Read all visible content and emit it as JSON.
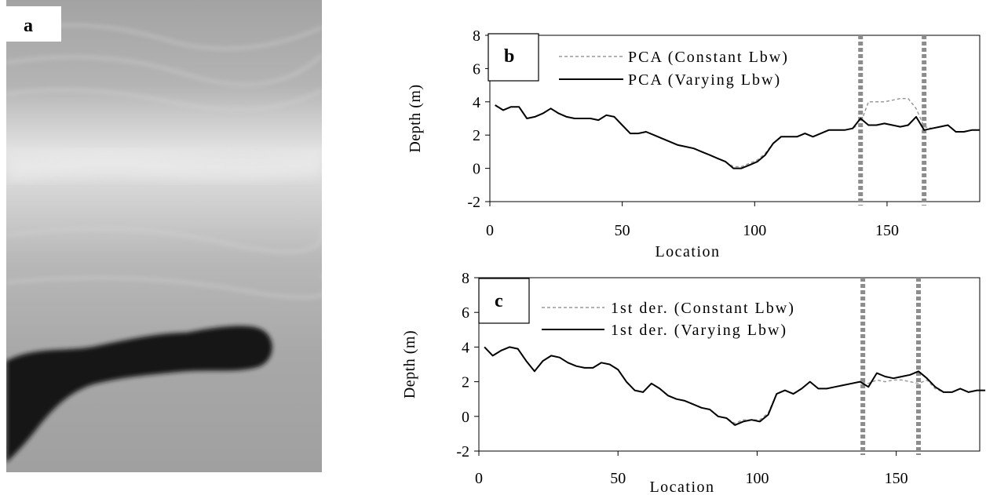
{
  "panels": {
    "a": {
      "label": "a"
    },
    "b": {
      "label": "b"
    },
    "c": {
      "label": "c"
    }
  },
  "colors": {
    "varying": "#000000",
    "constant": "#999999",
    "marker": "#8c8c8c"
  },
  "chart_data": [
    {
      "panel": "b",
      "type": "line",
      "xlabel": "Location",
      "ylabel": "Depth (m)",
      "xlim": [
        0,
        185
      ],
      "ylim": [
        -2,
        8
      ],
      "xticks": [
        0,
        50,
        100,
        150
      ],
      "yticks": [
        -2,
        0,
        2,
        4,
        6,
        8
      ],
      "legend_position": "top-center",
      "grid": false,
      "vertical_markers": [
        140,
        164
      ],
      "series": [
        {
          "name": "PCA (Constant Lbw)",
          "style": "dashed",
          "color": "#999999",
          "x": [
            2,
            5,
            8,
            11,
            14,
            17,
            20,
            23,
            26,
            29,
            32,
            35,
            38,
            41,
            44,
            47,
            50,
            53,
            56,
            59,
            62,
            65,
            68,
            71,
            74,
            77,
            80,
            83,
            86,
            89,
            92,
            95,
            98,
            101,
            104,
            107,
            110,
            113,
            116,
            119,
            122,
            125,
            128,
            131,
            134,
            137,
            140,
            143,
            146,
            149,
            152,
            155,
            158,
            161,
            164,
            167,
            170,
            173,
            176,
            179,
            182,
            185
          ],
          "values": [
            3.8,
            3.5,
            3.7,
            3.7,
            3.0,
            3.1,
            3.3,
            3.6,
            3.3,
            3.1,
            3.0,
            3.0,
            3.0,
            2.9,
            3.2,
            3.1,
            2.6,
            2.1,
            2.1,
            2.2,
            2.0,
            1.8,
            1.6,
            1.4,
            1.3,
            1.2,
            1.0,
            0.8,
            0.6,
            0.4,
            0.1,
            0.1,
            0.3,
            0.5,
            0.9,
            1.5,
            1.9,
            1.9,
            1.9,
            2.1,
            1.9,
            2.1,
            2.3,
            2.3,
            2.3,
            2.4,
            2.7,
            4.0,
            4.0,
            4.0,
            4.1,
            4.2,
            4.2,
            3.6,
            2.5,
            2.4,
            2.5,
            2.6,
            2.2,
            2.2,
            2.3,
            2.3
          ]
        },
        {
          "name": "PCA (Varying Lbw)",
          "style": "solid",
          "color": "#000000",
          "x": [
            2,
            5,
            8,
            11,
            14,
            17,
            20,
            23,
            26,
            29,
            32,
            35,
            38,
            41,
            44,
            47,
            50,
            53,
            56,
            59,
            62,
            65,
            68,
            71,
            74,
            77,
            80,
            83,
            86,
            89,
            92,
            95,
            98,
            101,
            104,
            107,
            110,
            113,
            116,
            119,
            122,
            125,
            128,
            131,
            134,
            137,
            140,
            143,
            146,
            149,
            152,
            155,
            158,
            161,
            164,
            167,
            170,
            173,
            176,
            179,
            182,
            185
          ],
          "values": [
            3.8,
            3.5,
            3.7,
            3.7,
            3.0,
            3.1,
            3.3,
            3.6,
            3.3,
            3.1,
            3.0,
            3.0,
            3.0,
            2.9,
            3.2,
            3.1,
            2.6,
            2.1,
            2.1,
            2.2,
            2.0,
            1.8,
            1.6,
            1.4,
            1.3,
            1.2,
            1.0,
            0.8,
            0.6,
            0.4,
            0.0,
            0.0,
            0.2,
            0.4,
            0.8,
            1.5,
            1.9,
            1.9,
            1.9,
            2.1,
            1.9,
            2.1,
            2.3,
            2.3,
            2.3,
            2.4,
            3.0,
            2.6,
            2.6,
            2.7,
            2.6,
            2.5,
            2.6,
            3.1,
            2.3,
            2.4,
            2.5,
            2.6,
            2.2,
            2.2,
            2.3,
            2.3
          ]
        }
      ]
    },
    {
      "panel": "c",
      "type": "line",
      "xlabel": "Location",
      "ylabel": "Depth (m)",
      "xlim": [
        0,
        180
      ],
      "ylim": [
        -2,
        8
      ],
      "xticks": [
        0,
        50,
        100,
        150
      ],
      "yticks": [
        -2,
        0,
        2,
        4,
        6,
        8
      ],
      "legend_position": "top-center",
      "grid": false,
      "vertical_markers": [
        138,
        158
      ],
      "series": [
        {
          "name": "1st der. (Constant Lbw)",
          "style": "dashed",
          "color": "#999999",
          "x": [
            2,
            5,
            8,
            11,
            14,
            17,
            20,
            23,
            26,
            29,
            32,
            35,
            38,
            41,
            44,
            47,
            50,
            53,
            56,
            59,
            62,
            65,
            68,
            71,
            74,
            77,
            80,
            83,
            86,
            89,
            92,
            95,
            98,
            101,
            104,
            107,
            110,
            113,
            116,
            119,
            122,
            125,
            128,
            131,
            134,
            137,
            140,
            143,
            146,
            149,
            152,
            155,
            158,
            161,
            164,
            167,
            170,
            173,
            176,
            179,
            182
          ],
          "values": [
            4.0,
            3.5,
            3.8,
            4.0,
            3.9,
            3.2,
            2.6,
            3.2,
            3.5,
            3.4,
            3.1,
            2.9,
            2.8,
            2.8,
            3.1,
            3.0,
            2.7,
            2.0,
            1.5,
            1.4,
            1.9,
            1.6,
            1.2,
            1.0,
            0.9,
            0.7,
            0.5,
            0.4,
            0.0,
            -0.1,
            -0.4,
            -0.2,
            -0.2,
            -0.2,
            0.2,
            1.3,
            1.5,
            1.3,
            1.6,
            2.0,
            1.6,
            1.6,
            1.7,
            1.8,
            1.9,
            2.0,
            1.9,
            2.1,
            2.0,
            2.1,
            2.1,
            2.0,
            1.9,
            2.1,
            1.6,
            1.4,
            1.4,
            1.6,
            1.4,
            1.5,
            1.5
          ]
        },
        {
          "name": "1st der. (Varying Lbw)",
          "style": "solid",
          "color": "#000000",
          "x": [
            2,
            5,
            8,
            11,
            14,
            17,
            20,
            23,
            26,
            29,
            32,
            35,
            38,
            41,
            44,
            47,
            50,
            53,
            56,
            59,
            62,
            65,
            68,
            71,
            74,
            77,
            80,
            83,
            86,
            89,
            92,
            95,
            98,
            101,
            104,
            107,
            110,
            113,
            116,
            119,
            122,
            125,
            128,
            131,
            134,
            137,
            140,
            143,
            146,
            149,
            152,
            155,
            158,
            161,
            164,
            167,
            170,
            173,
            176,
            179,
            182
          ],
          "values": [
            4.0,
            3.5,
            3.8,
            4.0,
            3.9,
            3.2,
            2.6,
            3.2,
            3.5,
            3.4,
            3.1,
            2.9,
            2.8,
            2.8,
            3.1,
            3.0,
            2.7,
            2.0,
            1.5,
            1.4,
            1.9,
            1.6,
            1.2,
            1.0,
            0.9,
            0.7,
            0.5,
            0.4,
            0.0,
            -0.1,
            -0.5,
            -0.3,
            -0.2,
            -0.3,
            0.1,
            1.3,
            1.5,
            1.3,
            1.6,
            2.0,
            1.6,
            1.6,
            1.7,
            1.8,
            1.9,
            2.0,
            1.7,
            2.5,
            2.3,
            2.2,
            2.3,
            2.4,
            2.6,
            2.2,
            1.7,
            1.4,
            1.4,
            1.6,
            1.4,
            1.5,
            1.5
          ]
        }
      ]
    }
  ]
}
